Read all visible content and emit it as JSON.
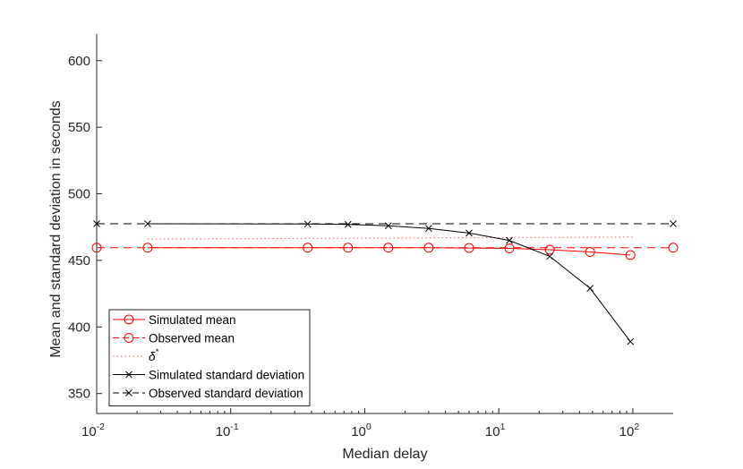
{
  "chart_data": {
    "type": "line",
    "title": "",
    "xlabel": "Median delay",
    "ylabel": "Mean and standard deviation in seconds",
    "x_scale": "log",
    "xlim": [
      0.01,
      200
    ],
    "ylim": [
      335,
      620
    ],
    "x_ticks": [
      {
        "value": 0.01,
        "base": "10",
        "exp": "-2"
      },
      {
        "value": 0.1,
        "base": "10",
        "exp": "-1"
      },
      {
        "value": 1,
        "base": "10",
        "exp": "0"
      },
      {
        "value": 10,
        "base": "10",
        "exp": "1"
      },
      {
        "value": 100,
        "base": "10",
        "exp": "2"
      }
    ],
    "y_ticks": [
      350,
      400,
      450,
      500,
      550,
      600
    ],
    "grid": false,
    "legend_position": "bottom-left",
    "series": [
      {
        "name": "Simulated mean",
        "color": "#ff0000",
        "line_style": "solid",
        "marker": "circle",
        "x": [
          0.024,
          0.375,
          0.75,
          1.5,
          3,
          6,
          12,
          24,
          48,
          96
        ],
        "y": [
          459.5,
          459.5,
          459.5,
          459.5,
          459.5,
          459.3,
          459.0,
          458.0,
          456.3,
          454.0
        ]
      },
      {
        "name": "Observed mean",
        "color": "#ff0000",
        "line_style": "dashed",
        "marker": "circle",
        "x": [
          0.01,
          200
        ],
        "y": [
          459.5,
          459.5
        ]
      },
      {
        "name": "δ*",
        "color": "#ff0000",
        "line_style": "dotted",
        "marker": "none",
        "x": [
          0.024,
          100
        ],
        "y": [
          466.0,
          467.5
        ]
      },
      {
        "name": "Simulated standard deviation",
        "color": "#000000",
        "line_style": "solid",
        "marker": "x",
        "x": [
          0.024,
          0.375,
          0.75,
          1.5,
          3,
          6,
          12,
          24,
          48,
          96
        ],
        "y": [
          477.5,
          477.3,
          477.0,
          476.0,
          474.0,
          470.5,
          465.0,
          453.0,
          429.0,
          389.0
        ]
      },
      {
        "name": "Observed standard deviation",
        "color": "#000000",
        "line_style": "dashed",
        "marker": "x",
        "x": [
          0.01,
          200
        ],
        "y": [
          477.5,
          477.5
        ]
      }
    ],
    "legend": [
      {
        "label": "Simulated mean",
        "sup": ""
      },
      {
        "label": "Observed mean",
        "sup": ""
      },
      {
        "label": "δ",
        "sup": "*"
      },
      {
        "label": "Simulated standard deviation",
        "sup": ""
      },
      {
        "label": "Observed standard deviation",
        "sup": ""
      }
    ]
  }
}
